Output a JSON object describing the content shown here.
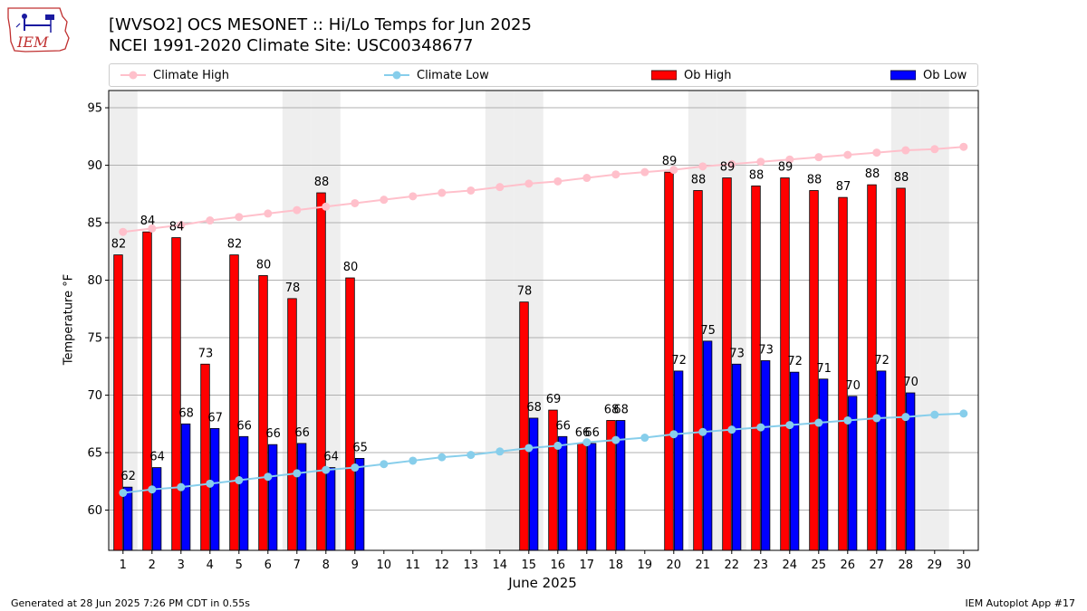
{
  "header": {
    "title_line1": "[WVSO2] OCS MESONET :: Hi/Lo Temps for Jun 2025",
    "title_line2": "NCEI 1991-2020 Climate Site: USC00348677"
  },
  "logo": {
    "text": "IEM"
  },
  "legend": {
    "placement": "top, horizontal above plot",
    "items": [
      {
        "label": "Climate High",
        "color": "#ffc0cb",
        "kind": "line-marker"
      },
      {
        "label": "Climate Low",
        "color": "#87ceeb",
        "kind": "line-marker"
      },
      {
        "label": "Ob High",
        "color": "#ff0000",
        "kind": "bar"
      },
      {
        "label": "Ob Low",
        "color": "#0000ff",
        "kind": "bar"
      }
    ]
  },
  "footer": {
    "left": "Generated at 28 Jun 2025 7:26 PM CDT in 0.55s",
    "right": "IEM Autoplot App #17"
  },
  "chart_data": {
    "type": "bar",
    "xlabel": "June 2025",
    "ylabel": "Temperature °F",
    "ylim": [
      56.5,
      96.5
    ],
    "yticks": [
      60,
      65,
      70,
      75,
      80,
      85,
      90,
      95
    ],
    "grid": "horizontal",
    "weekend_shading_days": [
      1,
      7,
      8,
      14,
      15,
      21,
      22,
      28,
      29
    ],
    "weekend_shading_color": "#eeeeee",
    "categories": [
      1,
      2,
      3,
      4,
      5,
      6,
      7,
      8,
      9,
      10,
      11,
      12,
      13,
      14,
      15,
      16,
      17,
      18,
      19,
      20,
      21,
      22,
      23,
      24,
      25,
      26,
      27,
      28,
      29,
      30
    ],
    "series": [
      {
        "name": "Ob High",
        "kind": "bar",
        "color": "#ff0000",
        "values": [
          82.2,
          84.2,
          83.7,
          72.7,
          82.2,
          80.4,
          78.4,
          87.6,
          80.2,
          null,
          null,
          null,
          null,
          null,
          78.1,
          68.7,
          65.8,
          67.8,
          null,
          89.4,
          87.8,
          88.9,
          88.2,
          88.9,
          87.8,
          87.2,
          88.3,
          88.0,
          null,
          null
        ]
      },
      {
        "name": "Ob Low",
        "kind": "bar",
        "color": "#0000ff",
        "values": [
          62.0,
          63.7,
          67.5,
          67.1,
          66.4,
          65.7,
          65.8,
          63.7,
          64.5,
          null,
          null,
          null,
          null,
          null,
          68.0,
          66.4,
          65.8,
          67.8,
          null,
          72.1,
          74.7,
          72.7,
          73.0,
          72.0,
          71.4,
          69.9,
          72.1,
          70.2,
          null,
          null
        ]
      },
      {
        "name": "Climate High",
        "kind": "line",
        "color": "#ffc0cb",
        "values": [
          84.2,
          84.5,
          84.8,
          85.2,
          85.5,
          85.8,
          86.1,
          86.4,
          86.7,
          87.0,
          87.3,
          87.6,
          87.8,
          88.1,
          88.4,
          88.6,
          88.9,
          89.2,
          89.4,
          89.6,
          89.9,
          90.1,
          90.3,
          90.5,
          90.7,
          90.9,
          91.1,
          91.3,
          91.4,
          91.6
        ]
      },
      {
        "name": "Climate Low",
        "kind": "line",
        "color": "#87ceeb",
        "values": [
          61.5,
          61.8,
          62.0,
          62.3,
          62.6,
          62.9,
          63.2,
          63.5,
          63.7,
          64.0,
          64.3,
          64.6,
          64.8,
          65.1,
          65.4,
          65.6,
          65.9,
          66.1,
          66.3,
          66.6,
          66.8,
          67.0,
          67.2,
          67.4,
          67.6,
          67.8,
          68.0,
          68.1,
          68.3,
          68.4
        ]
      }
    ],
    "bar_labels": {
      "high": [
        "82",
        "84",
        "84",
        "73",
        "82",
        "80",
        "78",
        "88",
        "80",
        null,
        null,
        null,
        null,
        null,
        "78",
        "69",
        "66",
        "68",
        null,
        "89",
        "88",
        "89",
        "88",
        "89",
        "88",
        "87",
        "88",
        "88",
        null,
        null
      ],
      "low": [
        "62",
        "64",
        "68",
        "67",
        "66",
        "66",
        "66",
        "64",
        "65",
        null,
        null,
        null,
        null,
        null,
        "68",
        "66",
        "66",
        "68",
        null,
        "72",
        "75",
        "73",
        "73",
        "72",
        "71",
        "70",
        "72",
        "70",
        null,
        null
      ]
    }
  }
}
